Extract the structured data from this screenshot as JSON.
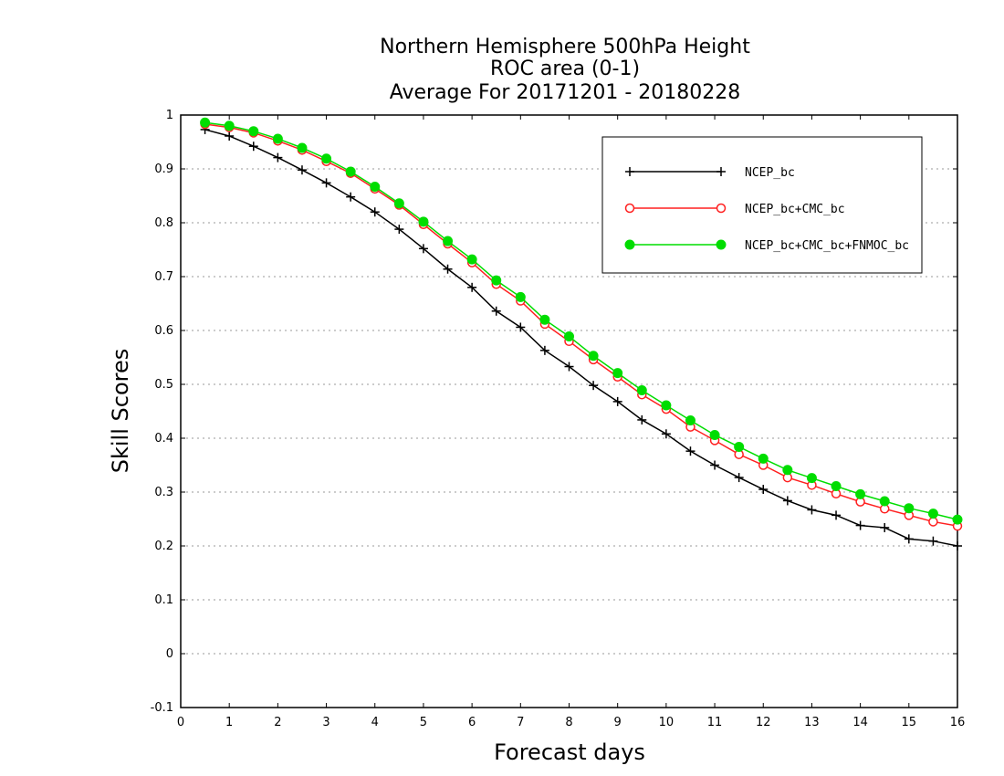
{
  "chart_data": {
    "type": "line",
    "title": [
      "Northern Hemisphere 500hPa Height",
      "ROC area (0-1)",
      "Average For 20171201 - 20180228"
    ],
    "xlabel": "Forecast days",
    "ylabel": "Skill Scores",
    "xlim": [
      0,
      16
    ],
    "ylim": [
      -0.1,
      1
    ],
    "xticks": [
      "0",
      "1",
      "2",
      "3",
      "4",
      "5",
      "6",
      "7",
      "8",
      "9",
      "10",
      "11",
      "12",
      "13",
      "14",
      "15",
      "16"
    ],
    "yticks": [
      "-0.1",
      "0",
      "0.1",
      "0.2",
      "0.3",
      "0.4",
      "0.5",
      "0.6",
      "0.7",
      "0.8",
      "0.9",
      "1"
    ],
    "grid": "horizontal dotted",
    "legend_position": "top-right",
    "x": [
      0.5,
      1,
      1.5,
      2,
      2.5,
      3,
      3.5,
      4,
      4.5,
      5,
      5.5,
      6,
      6.5,
      7,
      7.5,
      8,
      8.5,
      9,
      9.5,
      10,
      10.5,
      11,
      11.5,
      12,
      12.5,
      13,
      13.5,
      14,
      14.5,
      15,
      15.5,
      16
    ],
    "series": [
      {
        "name": "NCEP_bc",
        "color": "#000000",
        "marker": "plus",
        "values": [
          0.973,
          0.961,
          0.942,
          0.921,
          0.898,
          0.874,
          0.848,
          0.82,
          0.788,
          0.752,
          0.714,
          0.68,
          0.636,
          0.606,
          0.563,
          0.533,
          0.498,
          0.468,
          0.434,
          0.408,
          0.376,
          0.35,
          0.327,
          0.305,
          0.284,
          0.267,
          0.257,
          0.238,
          0.234,
          0.213,
          0.209,
          0.2
        ]
      },
      {
        "name": "NCEP_bc+CMC_bc",
        "color": "#ff2020",
        "marker": "open-circle",
        "values": [
          0.983,
          0.977,
          0.967,
          0.952,
          0.935,
          0.914,
          0.892,
          0.863,
          0.833,
          0.797,
          0.761,
          0.726,
          0.686,
          0.655,
          0.612,
          0.58,
          0.546,
          0.514,
          0.481,
          0.454,
          0.421,
          0.396,
          0.37,
          0.35,
          0.327,
          0.313,
          0.297,
          0.282,
          0.269,
          0.257,
          0.245,
          0.237
        ]
      },
      {
        "name": "NCEP_bc+CMC_bc+FNMOC_bc",
        "color": "#00dd00",
        "marker": "filled-circle",
        "values": [
          0.986,
          0.98,
          0.97,
          0.956,
          0.939,
          0.919,
          0.895,
          0.867,
          0.836,
          0.802,
          0.766,
          0.732,
          0.693,
          0.662,
          0.62,
          0.589,
          0.553,
          0.521,
          0.489,
          0.461,
          0.433,
          0.406,
          0.384,
          0.362,
          0.341,
          0.326,
          0.311,
          0.296,
          0.283,
          0.27,
          0.26,
          0.249
        ]
      }
    ]
  }
}
